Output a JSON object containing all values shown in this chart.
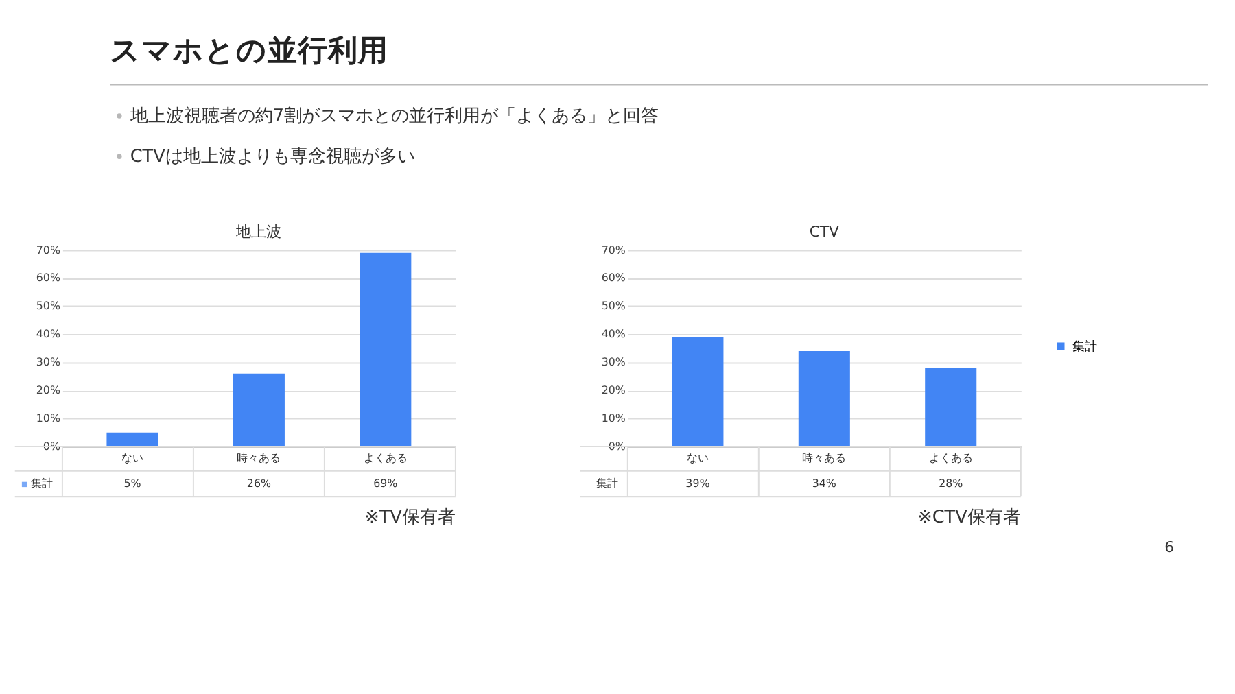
{
  "chart_data": [
    {
      "type": "other",
      "title": "スマホとの並行利用",
      "annotations": [
        "地上波視聴者の約7割がスマホとの並行利用が「よくある」と回答",
        "CTVは地上波よりも専念視聴が多い",
        "6"
      ]
    },
    {
      "type": "bar",
      "title": "地上波",
      "categories": [
        "ない",
        "時々ある",
        "よくある"
      ],
      "series": [
        {
          "name": "集計",
          "color": "#4285f4",
          "values": [
            5,
            26,
            69
          ]
        }
      ],
      "value_labels": [
        "5%",
        "26%",
        "69%"
      ],
      "ylim": [
        0,
        70
      ],
      "yticks": [
        {
          "value": 0,
          "label": "0%"
        },
        {
          "value": 10,
          "label": "10%"
        },
        {
          "value": 20,
          "label": "20%"
        },
        {
          "value": 30,
          "label": "30%"
        },
        {
          "value": 40,
          "label": "40%"
        },
        {
          "value": 50,
          "label": "50%"
        },
        {
          "value": 60,
          "label": "60%"
        },
        {
          "value": 70,
          "label": "70%"
        }
      ],
      "grid": "y",
      "legend": "bottom left",
      "annotations": [
        "※TV保有者"
      ]
    },
    {
      "type": "bar",
      "title": "CTV",
      "categories": [
        "ない",
        "時々ある",
        "よくある"
      ],
      "series": [
        {
          "name": "集計",
          "color": "#4285f4",
          "values": [
            39,
            34,
            28
          ]
        }
      ],
      "value_labels": [
        "39%",
        "34%",
        "28%"
      ],
      "ylim": [
        0,
        70
      ],
      "yticks": [
        {
          "value": 0,
          "label": "0%"
        },
        {
          "value": 10,
          "label": "10%"
        },
        {
          "value": 20,
          "label": "20%"
        },
        {
          "value": 30,
          "label": "30%"
        },
        {
          "value": 40,
          "label": "40%"
        },
        {
          "value": 50,
          "label": "50%"
        },
        {
          "value": 60,
          "label": "60%"
        },
        {
          "value": 70,
          "label": "70%"
        }
      ],
      "grid": "y",
      "legend": "right",
      "annotations": [
        "※CTV保有者"
      ]
    }
  ]
}
